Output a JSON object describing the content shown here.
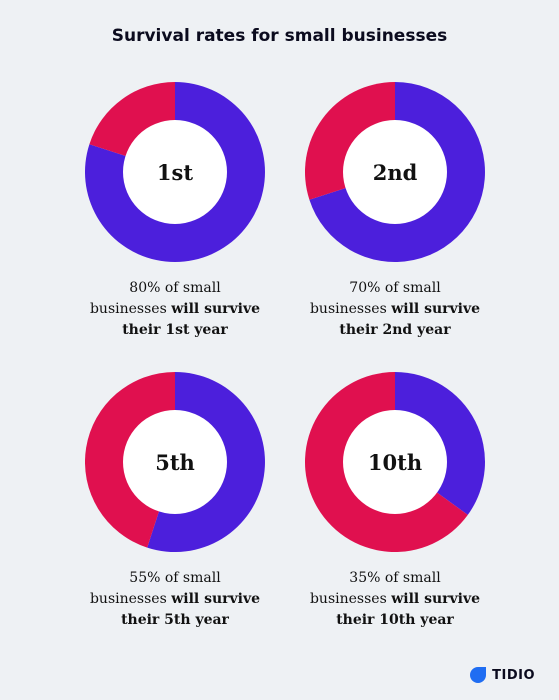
{
  "chart_data": {
    "type": "pie",
    "title": "Survival rates for small businesses",
    "series_colors": {
      "survive": "#4c1fdc",
      "fail": "#e0104f"
    },
    "charts": [
      {
        "label": "1st",
        "survive_pct": 80,
        "caption_pre": "80% of small",
        "caption_mid": "businesses ",
        "caption_bold1": "will survive",
        "caption_bold2": "their 1st year"
      },
      {
        "label": "2nd",
        "survive_pct": 70,
        "caption_pre": "70% of small",
        "caption_mid": "businesses ",
        "caption_bold1": "will survive",
        "caption_bold2": "their 2nd year"
      },
      {
        "label": "5th",
        "survive_pct": 55,
        "caption_pre": "55% of small",
        "caption_mid": "businesses ",
        "caption_bold1": "will survive",
        "caption_bold2": "their 5th year"
      },
      {
        "label": "10th",
        "survive_pct": 35,
        "caption_pre": "35% of small",
        "caption_mid": "businesses ",
        "caption_bold1": "will survive",
        "caption_bold2": "their 10th year"
      }
    ]
  },
  "brand": {
    "name": "TIDIO",
    "color": "#1f6df2"
  }
}
